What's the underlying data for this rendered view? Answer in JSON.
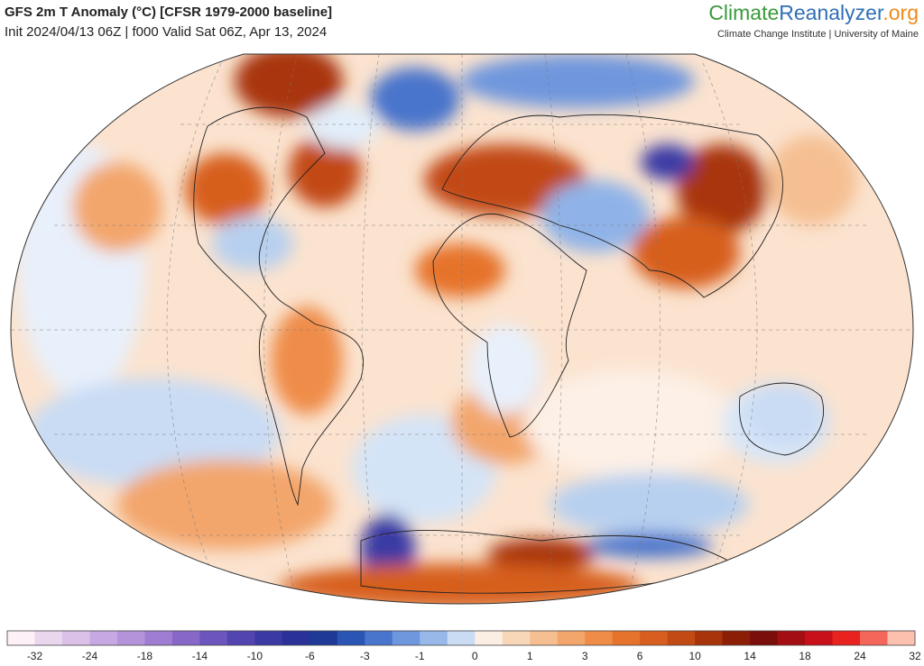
{
  "header": {
    "title": "GFS 2m T Anomaly (°C) [CFSR 1979-2000 baseline]",
    "subtitle": "Init 2024/04/13 06Z | f000 Valid Sat 06Z, Apr 13, 2024",
    "brand": [
      "Climate",
      "Reanalyzer",
      ".org"
    ],
    "institution": "Climate Change Institute | University of Maine"
  },
  "colorbar": {
    "colors": [
      "#fdf0f6",
      "#ead7ee",
      "#dbc0e8",
      "#c8a8e2",
      "#b593da",
      "#9f7dd2",
      "#8768c8",
      "#6c55bc",
      "#5245b0",
      "#3b3aa5",
      "#2a3199",
      "#1e3a96",
      "#2b55b5",
      "#4a75cc",
      "#6f97dd",
      "#98b8ea",
      "#c9dcf4",
      "#fbeee2",
      "#f8d6b8",
      "#f5bf92",
      "#f3a66c",
      "#ef8c48",
      "#e6732c",
      "#d75e1e",
      "#c24a14",
      "#a8340c",
      "#8c1e06",
      "#7a0e0a",
      "#a30e12",
      "#c8101a",
      "#e8221e",
      "#f5665a",
      "#fcc0ae"
    ],
    "labels": [
      -32,
      -24,
      -18,
      -14,
      -10,
      -6,
      -3,
      -1,
      0,
      1,
      3,
      6,
      10,
      14,
      18,
      24,
      32
    ]
  }
}
